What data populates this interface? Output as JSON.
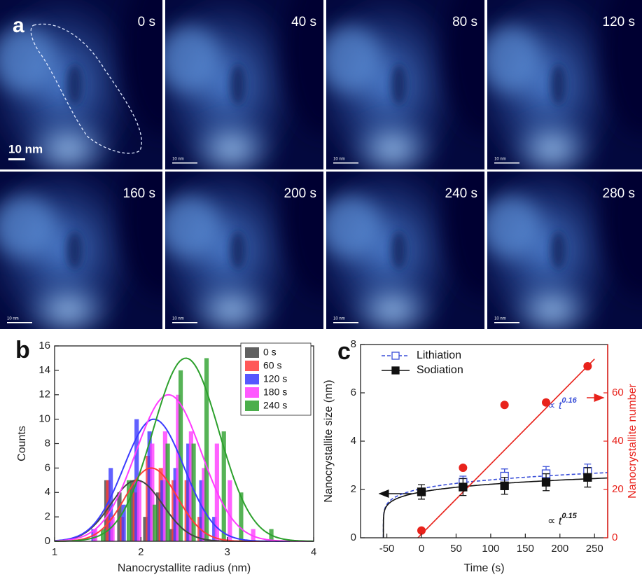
{
  "panel_a": {
    "label": "a",
    "images": [
      {
        "time": "0 s",
        "scale": "10 nm"
      },
      {
        "time": "40 s",
        "scale": "10 nm"
      },
      {
        "time": "80 s",
        "scale": "10 nm"
      },
      {
        "time": "120 s",
        "scale": "10 nm"
      },
      {
        "time": "160 s",
        "scale": "10 nm"
      },
      {
        "time": "200 s",
        "scale": "10 nm"
      },
      {
        "time": "240 s",
        "scale": "10 nm"
      },
      {
        "time": "280 s",
        "scale": "10 nm"
      }
    ]
  },
  "chart_data": [
    {
      "type": "bar",
      "label": "b",
      "x_label": "Nanocrystallite radius (nm)",
      "y_label": "Counts",
      "xlim": [
        1,
        4
      ],
      "xticks": [
        1,
        2,
        3,
        4
      ],
      "ylim": [
        0,
        16
      ],
      "yticks": [
        0,
        2,
        4,
        6,
        8,
        10,
        12,
        14,
        16
      ],
      "legend": "top-right",
      "series": [
        {
          "name": "0 s",
          "color": "#444444",
          "x": [
            1.6,
            1.75,
            1.9,
            2.05,
            2.2,
            2.35
          ],
          "values": [
            5,
            4,
            5,
            2,
            4,
            1
          ],
          "fit": {
            "center": 1.95,
            "amplitude": 5,
            "sigma": 0.3
          }
        },
        {
          "name": "60 s",
          "color": "#ff3b3b",
          "x": [
            1.62,
            1.78,
            1.93,
            2.08,
            2.23,
            2.38,
            2.53,
            2.68
          ],
          "values": [
            5,
            2,
            4,
            7,
            6,
            5,
            5,
            2
          ],
          "fit": {
            "center": 2.12,
            "amplitude": 6,
            "sigma": 0.3
          }
        },
        {
          "name": "120 s",
          "color": "#3a3aff",
          "x": [
            1.45,
            1.65,
            1.8,
            1.95,
            2.1,
            2.25,
            2.4,
            2.55,
            2.7,
            2.85
          ],
          "values": [
            1,
            6,
            3,
            10,
            9,
            5,
            6,
            8,
            5,
            2
          ],
          "fit": {
            "center": 2.15,
            "amplitude": 10,
            "sigma": 0.35
          }
        },
        {
          "name": "180 s",
          "color": "#ff3bff",
          "x": [
            1.47,
            1.67,
            1.98,
            2.13,
            2.28,
            2.43,
            2.58,
            2.73,
            2.88,
            3.03,
            3.3
          ],
          "values": [
            1,
            2,
            5,
            8,
            9,
            12,
            9,
            6,
            8,
            5,
            1
          ],
          "fit": {
            "center": 2.32,
            "amplitude": 12,
            "sigma": 0.38
          }
        },
        {
          "name": "240 s",
          "color": "#2ca02c",
          "x": [
            1.56,
            1.86,
            2.16,
            2.31,
            2.46,
            2.61,
            2.76,
            2.96,
            3.16,
            3.51
          ],
          "values": [
            1,
            5,
            3,
            8,
            14,
            8,
            15,
            9,
            4,
            1
          ],
          "fit": {
            "center": 2.52,
            "amplitude": 15,
            "sigma": 0.38
          }
        }
      ]
    },
    {
      "type": "line",
      "label": "c",
      "x_label": "Time (s)",
      "y_label": "Nanocrystallite size (nm)",
      "y2_label": "Nanocrystallite number",
      "xlim": [
        -88,
        269
      ],
      "xticks": [
        -50,
        0,
        50,
        100,
        150,
        200,
        250
      ],
      "ylim": [
        0,
        8
      ],
      "yticks": [
        0,
        2,
        4,
        6,
        8
      ],
      "y2lim": [
        0,
        80
      ],
      "y2ticks": [
        0,
        20,
        40,
        60
      ],
      "legend": "top-left",
      "series": [
        {
          "name": "Lithiation",
          "color": "#3a4fd8",
          "marker": "open-square",
          "dashed": true,
          "x": [
            60,
            120,
            180,
            240
          ],
          "values": [
            2.3,
            2.55,
            2.65,
            2.75
          ],
          "errors": [
            0.25,
            0.3,
            0.3,
            0.3
          ],
          "fit": {
            "offset": 55,
            "coefficient": 1.07,
            "exponent": 0.16
          },
          "annotation": "∝ t"
        },
        {
          "name": "Sodiation",
          "color": "#111111",
          "marker": "square",
          "dashed": false,
          "x": [
            0,
            60,
            120,
            180,
            240
          ],
          "values": [
            1.9,
            2.1,
            2.15,
            2.3,
            2.5
          ],
          "errors": [
            0.3,
            0.35,
            0.35,
            0.35,
            0.4
          ],
          "fit": {
            "offset": 55,
            "coefficient": 1.04,
            "exponent": 0.15
          },
          "annotation": "∝ t"
        },
        {
          "axis": "y2",
          "color": "#e8221b",
          "marker": "circle",
          "x": [
            0,
            60,
            120,
            180,
            240
          ],
          "values": [
            3,
            29,
            55,
            56,
            71
          ],
          "fit": {
            "slope": 0.29,
            "intercept": 1.5
          }
        }
      ]
    }
  ]
}
